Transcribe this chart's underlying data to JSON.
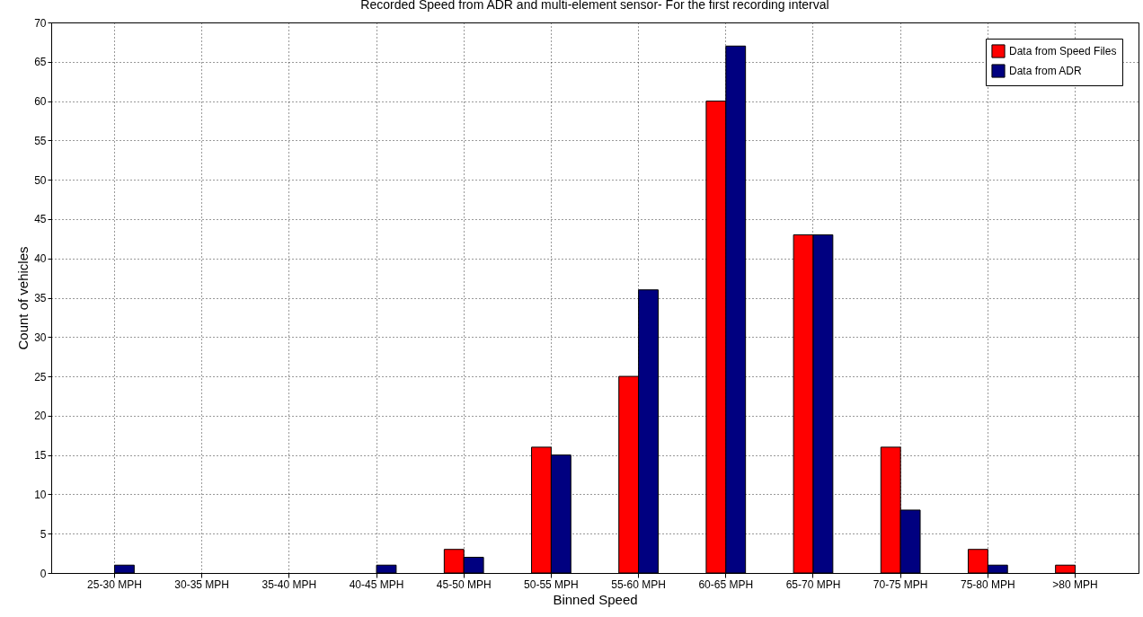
{
  "chart_data": {
    "type": "bar",
    "title": "Recorded Speed from ADR and multi-element sensor- For the first recording interval",
    "xlabel": "Binned Speed",
    "ylabel": "Count of vehicles",
    "categories": [
      "25-30 MPH",
      "30-35 MPH",
      "35-40 MPH",
      "40-45 MPH",
      "45-50 MPH",
      "50-55 MPH",
      "55-60 MPH",
      "60-65 MPH",
      "65-70 MPH",
      "70-75 MPH",
      "75-80 MPH",
      ">80 MPH"
    ],
    "series": [
      {
        "name": "Data from Speed Files",
        "color": "#ff0000",
        "values": [
          0,
          0,
          0,
          0,
          3,
          16,
          25,
          60,
          43,
          16,
          3,
          1
        ]
      },
      {
        "name": "Data from ADR",
        "color": "#000080",
        "values": [
          1,
          0,
          0,
          1,
          2,
          15,
          36,
          67,
          43,
          8,
          1,
          0
        ]
      }
    ],
    "ylim": [
      0,
      70
    ],
    "yticks": [
      0,
      5,
      10,
      15,
      20,
      25,
      30,
      35,
      40,
      45,
      50,
      55,
      60,
      65,
      70
    ],
    "grid": true,
    "legend": "top right"
  }
}
